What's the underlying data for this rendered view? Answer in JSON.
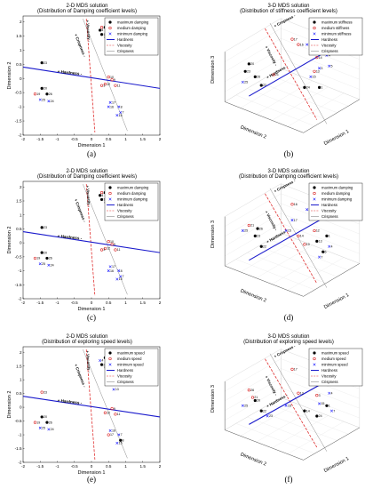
{
  "chart_data": [
    {
      "id": "a",
      "type": "scatter",
      "kind": "2d",
      "title": "2-D MDS solution",
      "subtitle": "(Distribution of Damping coefficient levels)",
      "xlabel": "Dimension 1",
      "ylabel": "Dimension 2",
      "xlim": [
        -2,
        2
      ],
      "ylim": [
        -2,
        2.2
      ],
      "xticks": [
        "-2",
        "-1.5",
        "-1",
        "-0.5",
        "0",
        "0.5",
        "1",
        "1.5",
        "2"
      ],
      "yticks": [
        "-2",
        "-1.5",
        "-1",
        "-0.5",
        "0",
        "0.5",
        "1",
        "1.5",
        "2"
      ],
      "panel_label": "(a)",
      "legend": [
        "maximum damping",
        "medium damping",
        "minimum damping",
        "Hardness",
        "Viscosity",
        "Crispness"
      ],
      "series": [
        {
          "marker": "filled-black",
          "points": [
            [
              -1.45,
              0.55,
              "23"
            ],
            [
              0.3,
              1.55,
              "1"
            ],
            [
              0.4,
              1.8,
              "6"
            ],
            [
              0.42,
              1.45,
              "5"
            ],
            [
              0.25,
              1.7,
              "4"
            ],
            [
              -1.45,
              -0.35,
              "20"
            ],
            [
              -1.3,
              -0.55,
              "26"
            ]
          ]
        },
        {
          "marker": "circle-red",
          "points": [
            [
              0.6,
              -0.05,
              "9"
            ],
            [
              0.7,
              -0.25,
              "11"
            ],
            [
              0.4,
              -0.2,
              "12"
            ],
            [
              0.3,
              -0.25,
              "3"
            ],
            [
              -1.65,
              -0.55,
              "19"
            ],
            [
              0.3,
              1.8,
              "2"
            ],
            [
              0.5,
              0.05,
              "10"
            ]
          ]
        },
        {
          "marker": "x-blue",
          "points": [
            [
              0.5,
              -1.0,
              "16"
            ],
            [
              0.55,
              -0.85,
              "17"
            ],
            [
              0.8,
              -1.0,
              "8"
            ],
            [
              0.85,
              -1.2,
              "7"
            ],
            [
              -1.5,
              -0.75,
              "25"
            ],
            [
              -1.25,
              -0.8,
              "24"
            ],
            [
              0.75,
              -1.3,
              "15"
            ]
          ]
        }
      ],
      "lines": {
        "hardness": [
          [
            -2,
            0.4
          ],
          [
            2,
            -0.35
          ]
        ],
        "viscosity": [
          [
            -0.15,
            2.1
          ],
          [
            0.1,
            -1.9
          ]
        ],
        "crispness": [
          [
            -0.25,
            2.1
          ],
          [
            1.05,
            -1.85
          ]
        ]
      },
      "line_labels": [
        "+ Hardness -",
        "+ Crispness -",
        "+ Viscosity -"
      ]
    },
    {
      "id": "b",
      "type": "scatter",
      "kind": "3d",
      "title": "3-D MDS solution",
      "subtitle": "(Distribution of stiffness coefficient levels)",
      "xlabel": "Dimension 1",
      "ylabel": "Dimension 2",
      "zlabel": "Dimension 3",
      "panel_label": "(b)",
      "legend": [
        "maximum stiffness",
        "medium stiffness",
        "minimum stiffness",
        "Hardness",
        "Viscosity",
        "Crispness"
      ],
      "series": [
        {
          "marker": "filled-black",
          "points": [
            [
              0.12,
              0.55,
              "23"
            ],
            [
              0.15,
              0.62,
              "20"
            ],
            [
              0.2,
              0.5,
              "26"
            ],
            [
              0.25,
              0.42,
              "22"
            ],
            [
              0.72,
              0.4,
              "1"
            ],
            [
              0.6,
              0.4,
              "24"
            ]
          ]
        },
        {
          "marker": "circle-red",
          "points": [
            [
              0.5,
              0.85,
              "17"
            ],
            [
              0.55,
              0.8,
              "16"
            ],
            [
              0.68,
              0.55,
              "13"
            ],
            [
              0.35,
              0.52,
              "21"
            ],
            [
              0.7,
              0.68,
              "14"
            ]
          ]
        },
        {
          "marker": "x-blue",
          "points": [
            [
              0.62,
              0.8,
              "18"
            ],
            [
              0.78,
              0.7,
              "4"
            ],
            [
              0.8,
              0.6,
              "5"
            ],
            [
              0.72,
              0.58,
              "3"
            ],
            [
              0.1,
              0.45,
              "25"
            ],
            [
              0.65,
              0.5,
              "15"
            ]
          ]
        }
      ],
      "line_labels": [
        "+ Crispness -",
        "+ Viscosity -",
        "+ Hardness -"
      ]
    },
    {
      "id": "c",
      "type": "scatter",
      "kind": "2d",
      "title": "2-D MDS solution",
      "subtitle": "(Distribution of Damping coefficient levels)",
      "xlabel": "Dimension 1",
      "ylabel": "Dimension 2",
      "xlim": [
        -2,
        2
      ],
      "ylim": [
        -2,
        2.2
      ],
      "xticks": [
        "-2",
        "-1.5",
        "-1",
        "-0.5",
        "0",
        "0.5",
        "1",
        "1.5",
        "2"
      ],
      "yticks": [
        "-2",
        "-1.5",
        "-1",
        "-0.5",
        "0",
        "0.5",
        "1",
        "1.5",
        "2"
      ],
      "panel_label": "(c)",
      "legend": [
        "maximum damping",
        "medium damping",
        "minimum damping",
        "Hardness",
        "Viscosity",
        "Crispness"
      ],
      "series": [
        {
          "marker": "filled-black",
          "points": [
            [
              -1.45,
              0.55,
              "23"
            ],
            [
              0.3,
              1.55,
              "1"
            ],
            [
              0.4,
              1.8,
              "6"
            ],
            [
              0.42,
              1.45,
              "5"
            ],
            [
              0.25,
              1.7,
              "4"
            ],
            [
              -1.45,
              -0.35,
              "20"
            ],
            [
              -1.3,
              -0.55,
              "26"
            ]
          ]
        },
        {
          "marker": "circle-red",
          "points": [
            [
              0.6,
              -0.05,
              "9"
            ],
            [
              0.7,
              -0.25,
              "11"
            ],
            [
              0.4,
              -0.2,
              "12"
            ],
            [
              0.3,
              -0.25,
              "3"
            ],
            [
              -1.65,
              -0.55,
              "19"
            ],
            [
              0.3,
              1.8,
              "2"
            ],
            [
              0.5,
              0.05,
              "10"
            ]
          ]
        },
        {
          "marker": "x-blue",
          "points": [
            [
              0.5,
              -1.0,
              "16"
            ],
            [
              0.55,
              -0.85,
              "17"
            ],
            [
              0.8,
              -1.0,
              "8"
            ],
            [
              0.85,
              -1.2,
              "7"
            ],
            [
              -1.5,
              -0.75,
              "25"
            ],
            [
              -1.25,
              -0.8,
              "24"
            ],
            [
              0.75,
              -1.3,
              "15"
            ]
          ]
        }
      ],
      "lines": {
        "hardness": [
          [
            -2,
            0.4
          ],
          [
            2,
            -0.35
          ]
        ],
        "viscosity": [
          [
            -0.15,
            2.1
          ],
          [
            0.1,
            -1.9
          ]
        ],
        "crispness": [
          [
            -0.25,
            2.1
          ],
          [
            1.05,
            -1.85
          ]
        ]
      },
      "line_labels": [
        "+ Hardness -",
        "+ Crispness -",
        "+ Viscosity -"
      ]
    },
    {
      "id": "d",
      "type": "scatter",
      "kind": "3d",
      "title": "3-D MDS solution",
      "subtitle": "(Distribution of Damping coefficient levels)",
      "xlabel": "Dimension 1",
      "ylabel": "Dimension 2",
      "zlabel": "Dimension 3",
      "panel_label": "(d)",
      "legend": [
        "maximum damping",
        "medium damping",
        "minimum damping",
        "Hardness",
        "Viscosity",
        "Crispness"
      ],
      "series": [
        {
          "marker": "filled-black",
          "points": [
            [
              0.2,
              0.55,
              "23"
            ],
            [
              0.25,
              0.45,
              "22"
            ],
            [
              0.22,
              0.62,
              "26"
            ],
            [
              0.7,
              0.5,
              "13"
            ],
            [
              0.78,
              0.55,
              "1"
            ],
            [
              0.75,
              0.4,
              "6"
            ]
          ]
        },
        {
          "marker": "circle-red",
          "points": [
            [
              0.5,
              0.85,
              "16"
            ],
            [
              0.15,
              0.65,
              "21"
            ],
            [
              0.68,
              0.6,
              "12"
            ],
            [
              0.55,
              0.55,
              "14"
            ],
            [
              0.6,
              0.47,
              "10"
            ]
          ]
        },
        {
          "marker": "x-blue",
          "points": [
            [
              0.62,
              0.8,
              "18"
            ],
            [
              0.1,
              0.6,
              "25"
            ],
            [
              0.8,
              0.45,
              "4"
            ],
            [
              0.72,
              0.35,
              "7"
            ],
            [
              0.5,
              0.7,
              "17"
            ],
            [
              0.45,
              0.6,
              "15"
            ]
          ]
        }
      ],
      "line_labels": [
        "+ Crispness -",
        "+ Viscosity -",
        "+ Hardness -"
      ]
    },
    {
      "id": "e",
      "type": "scatter",
      "kind": "2d",
      "title": "2-D MDS solution",
      "subtitle": "(Distribution of exploring speed levels)",
      "xlabel": "Dimension 1",
      "ylabel": "Dimension 2",
      "xlim": [
        -2,
        2
      ],
      "ylim": [
        -2,
        2.2
      ],
      "xticks": [
        "-2",
        "-1.5",
        "-1",
        "-0.5",
        "0",
        "0.5",
        "1",
        "1.5",
        "2"
      ],
      "yticks": [
        "-2",
        "-1.5",
        "-1",
        "-0.5",
        "0",
        "0.5",
        "1",
        "1.5",
        "2"
      ],
      "panel_label": "(e)",
      "legend": [
        "maximum speed",
        "medium speed",
        "minimum speed",
        "Hardness",
        "Viscosity",
        "Crispness"
      ],
      "series": [
        {
          "marker": "filled-black",
          "points": [
            [
              0.3,
              1.55,
              "2"
            ],
            [
              0.4,
              1.8,
              "6"
            ],
            [
              0.42,
              1.45,
              "5"
            ],
            [
              -1.45,
              -0.35,
              "20"
            ],
            [
              -1.3,
              -0.55,
              "26"
            ],
            [
              0.85,
              -1.2,
              "8"
            ]
          ]
        },
        {
          "marker": "circle-red",
          "points": [
            [
              -1.45,
              0.55,
              "23"
            ],
            [
              0.6,
              -0.05,
              "9"
            ],
            [
              0.7,
              -0.25,
              "11"
            ],
            [
              0.4,
              -0.2,
              "12"
            ],
            [
              -1.65,
              -0.55,
              "19"
            ],
            [
              0.5,
              -1.0,
              "17"
            ]
          ]
        },
        {
          "marker": "x-blue",
          "points": [
            [
              0.25,
              1.7,
              "4"
            ],
            [
              0.55,
              -0.85,
              "16"
            ],
            [
              0.8,
              -1.0,
              "7"
            ],
            [
              -1.5,
              -0.75,
              "25"
            ],
            [
              -1.25,
              -0.8,
              "24"
            ],
            [
              0.75,
              -1.3,
              "15"
            ],
            [
              0.65,
              0.65,
              "13"
            ]
          ]
        }
      ],
      "lines": {
        "hardness": [
          [
            -2,
            0.4
          ],
          [
            2,
            -0.35
          ]
        ],
        "viscosity": [
          [
            -0.15,
            2.1
          ],
          [
            0.1,
            -1.9
          ]
        ],
        "crispness": [
          [
            -0.25,
            2.1
          ],
          [
            1.05,
            -1.85
          ]
        ]
      },
      "line_labels": [
        "+ Hardness -",
        "+ Crispness -",
        "+ Viscosity -"
      ]
    },
    {
      "id": "f",
      "type": "scatter",
      "kind": "3d",
      "title": "3-D MDS solution",
      "subtitle": "(Distribution of exploring speed levels)",
      "xlabel": "Dimension 1",
      "ylabel": "Dimension 2",
      "zlabel": "Dimension 3",
      "panel_label": "(f)",
      "legend": [
        "maximum speed",
        "medium speed",
        "minimum speed",
        "Hardness",
        "Viscosity",
        "Crispness"
      ],
      "series": [
        {
          "marker": "filled-black",
          "points": [
            [
              0.2,
              0.55,
              "20"
            ],
            [
              0.25,
              0.45,
              "22"
            ],
            [
              0.65,
              0.75,
              "18"
            ],
            [
              0.78,
              0.5,
              "1"
            ],
            [
              0.7,
              0.4,
              "24"
            ],
            [
              0.6,
              0.45,
              "14"
            ]
          ]
        },
        {
          "marker": "circle-red",
          "points": [
            [
              0.5,
              0.85,
              "17"
            ],
            [
              0.15,
              0.65,
              "26"
            ],
            [
              0.18,
              0.58,
              "21"
            ],
            [
              0.7,
              0.6,
              "3"
            ],
            [
              0.55,
              0.62,
              "13"
            ]
          ]
        },
        {
          "marker": "x-blue",
          "points": [
            [
              0.1,
              0.5,
              "25"
            ],
            [
              0.8,
              0.62,
              "4"
            ],
            [
              0.72,
              0.52,
              "15"
            ],
            [
              0.82,
              0.45,
              "7"
            ],
            [
              0.3,
              0.4,
              "23"
            ],
            [
              0.45,
              0.5,
              "16"
            ]
          ]
        }
      ],
      "line_labels": [
        "+ Crispness -",
        "+ Viscosity -",
        "+ Hardness -"
      ]
    }
  ]
}
